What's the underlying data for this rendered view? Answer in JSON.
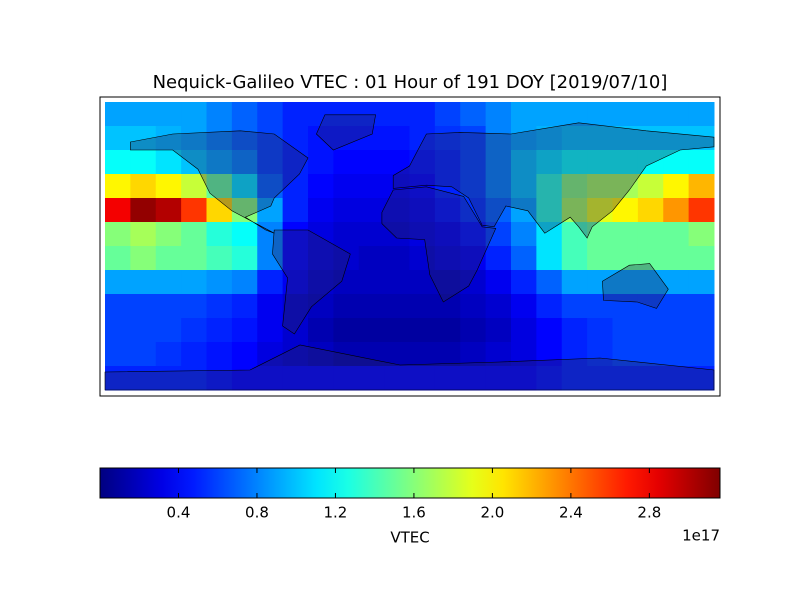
{
  "chart_data": {
    "type": "heatmap",
    "title": "Nequick-Galileo VTEC : 01 Hour of 191 DOY [2019/07/10]",
    "colormap": "jet",
    "z": [
      [
        0.9,
        0.9,
        0.9,
        0.9,
        0.8,
        0.7,
        0.6,
        0.5,
        0.5,
        0.5,
        0.5,
        0.5,
        0.5,
        0.6,
        0.7,
        0.8,
        0.9,
        0.9,
        0.9,
        0.9,
        0.9,
        0.9,
        0.9,
        0.9
      ],
      [
        1.0,
        1.0,
        0.95,
        0.9,
        0.8,
        0.7,
        0.6,
        0.5,
        0.45,
        0.45,
        0.45,
        0.45,
        0.5,
        0.55,
        0.6,
        0.8,
        0.9,
        0.95,
        1.0,
        1.0,
        1.0,
        1.0,
        1.0,
        1.0
      ],
      [
        1.2,
        1.2,
        1.1,
        1.0,
        0.9,
        0.8,
        0.6,
        0.5,
        0.45,
        0.4,
        0.4,
        0.4,
        0.45,
        0.5,
        0.6,
        0.8,
        1.0,
        1.1,
        1.2,
        1.2,
        1.2,
        1.2,
        1.2,
        1.2
      ],
      [
        2.0,
        2.1,
        2.0,
        1.8,
        1.5,
        1.1,
        0.7,
        0.5,
        0.4,
        0.35,
        0.35,
        0.35,
        0.4,
        0.5,
        0.6,
        0.8,
        1.0,
        1.3,
        1.6,
        1.7,
        1.7,
        1.8,
        2.0,
        2.2
      ],
      [
        2.8,
        3.1,
        3.0,
        2.6,
        2.1,
        1.6,
        0.9,
        0.5,
        0.35,
        0.3,
        0.3,
        0.3,
        0.35,
        0.45,
        0.55,
        0.7,
        0.9,
        1.3,
        1.7,
        1.9,
        2.0,
        2.1,
        2.3,
        2.6
      ],
      [
        1.6,
        1.7,
        1.6,
        1.5,
        1.3,
        1.2,
        0.8,
        0.4,
        0.3,
        0.25,
        0.25,
        0.25,
        0.3,
        0.35,
        0.45,
        0.6,
        0.8,
        1.1,
        1.4,
        1.5,
        1.5,
        1.5,
        1.5,
        1.6
      ],
      [
        1.5,
        1.6,
        1.5,
        1.5,
        1.4,
        1.3,
        0.8,
        0.4,
        0.3,
        0.25,
        0.2,
        0.2,
        0.25,
        0.3,
        0.35,
        0.5,
        0.7,
        1.1,
        1.4,
        1.5,
        1.5,
        1.5,
        1.5,
        1.5
      ],
      [
        0.9,
        0.9,
        0.9,
        0.9,
        0.85,
        0.8,
        0.5,
        0.35,
        0.25,
        0.2,
        0.2,
        0.2,
        0.2,
        0.2,
        0.25,
        0.35,
        0.5,
        0.7,
        0.9,
        0.9,
        0.9,
        0.9,
        0.9,
        0.9
      ],
      [
        0.6,
        0.6,
        0.6,
        0.6,
        0.55,
        0.5,
        0.35,
        0.25,
        0.2,
        0.15,
        0.15,
        0.15,
        0.15,
        0.15,
        0.2,
        0.25,
        0.35,
        0.5,
        0.6,
        0.6,
        0.6,
        0.6,
        0.6,
        0.6
      ],
      [
        0.6,
        0.6,
        0.6,
        0.55,
        0.5,
        0.45,
        0.35,
        0.25,
        0.15,
        0.1,
        0.1,
        0.1,
        0.1,
        0.1,
        0.15,
        0.2,
        0.3,
        0.4,
        0.5,
        0.55,
        0.6,
        0.6,
        0.6,
        0.6
      ],
      [
        0.6,
        0.6,
        0.55,
        0.5,
        0.45,
        0.4,
        0.3,
        0.25,
        0.2,
        0.15,
        0.15,
        0.15,
        0.15,
        0.15,
        0.2,
        0.25,
        0.3,
        0.4,
        0.5,
        0.55,
        0.6,
        0.6,
        0.6,
        0.6
      ],
      [
        0.5,
        0.5,
        0.5,
        0.5,
        0.45,
        0.4,
        0.4,
        0.4,
        0.4,
        0.4,
        0.4,
        0.4,
        0.4,
        0.4,
        0.4,
        0.4,
        0.4,
        0.45,
        0.5,
        0.5,
        0.5,
        0.5,
        0.5,
        0.5
      ]
    ],
    "colorbar": {
      "label": "VTEC",
      "offset_label": "1e17",
      "zlim": [
        0,
        3.16
      ],
      "zticks": [
        0.4,
        0.8,
        1.2,
        1.6,
        {
          "value": 2,
          "label": "2.0"
        },
        2.4,
        2.8
      ]
    }
  }
}
